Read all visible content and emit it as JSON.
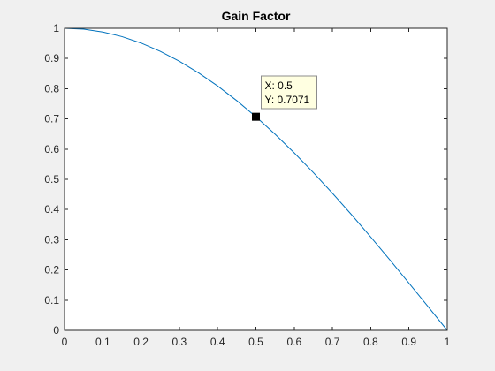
{
  "chart_data": {
    "type": "line",
    "title": "Gain Factor",
    "xlabel": "",
    "ylabel": "",
    "xlim": [
      0,
      1
    ],
    "ylim": [
      0,
      1
    ],
    "xticks": [
      0,
      0.1,
      0.2,
      0.3,
      0.4,
      0.5,
      0.6,
      0.7,
      0.8,
      0.9,
      1
    ],
    "xtick_labels": [
      "0",
      "0.1",
      "0.2",
      "0.3",
      "0.4",
      "0.5",
      "0.6",
      "0.7",
      "0.8",
      "0.9",
      "1"
    ],
    "yticks": [
      0,
      0.1,
      0.2,
      0.3,
      0.4,
      0.5,
      0.6,
      0.7,
      0.8,
      0.9,
      1
    ],
    "ytick_labels": [
      "0",
      "0.1",
      "0.2",
      "0.3",
      "0.4",
      "0.5",
      "0.6",
      "0.7",
      "0.8",
      "0.9",
      "1"
    ],
    "grid": false,
    "series": [
      {
        "color": "#0072bd",
        "x": [
          0,
          0.05,
          0.1,
          0.15,
          0.2,
          0.25,
          0.3,
          0.35,
          0.4,
          0.45,
          0.5,
          0.55,
          0.6,
          0.65,
          0.7,
          0.75,
          0.8,
          0.85,
          0.9,
          0.95,
          1
        ],
        "y": [
          1,
          0.9969,
          0.9877,
          0.9724,
          0.9511,
          0.9239,
          0.891,
          0.8526,
          0.809,
          0.7604,
          0.7071,
          0.6494,
          0.5878,
          0.5225,
          0.454,
          0.3827,
          0.309,
          0.2334,
          0.1564,
          0.0785,
          0
        ]
      }
    ],
    "datatip": {
      "x": 0.5,
      "y": 0.7071,
      "x_text": "X: 0.5",
      "y_text": "Y: 0.7071"
    }
  },
  "colors": {
    "background": "#f0f0f0",
    "axes_background": "#ffffff",
    "axis_color": "#262626",
    "datatip_background": "#ffffe1",
    "datatip_border": "#8c8c8c",
    "marker": "#000000"
  }
}
